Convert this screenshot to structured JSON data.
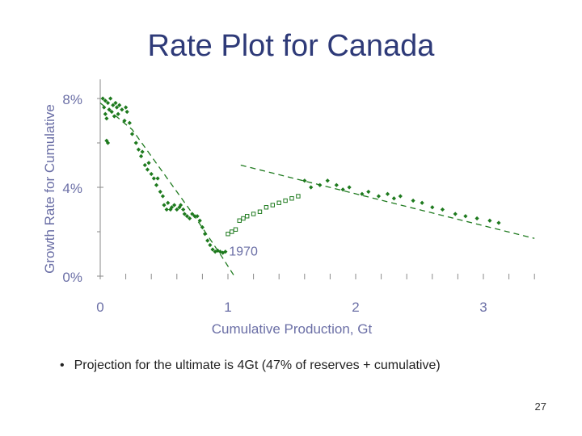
{
  "slide": {
    "title": "Rate Plot for Canada",
    "bullet": "Projection for the ultimate is 4Gt (47% of reserves + cumulative)",
    "page_number": "27"
  },
  "colors": {
    "title": "#2e3a78",
    "axis_label": "#6b6fa6",
    "data": "#1e7a1e",
    "axis": "#8a8a8a"
  },
  "chart_data": {
    "type": "scatter",
    "title": "",
    "xlabel": "Cumulative Production, Gt",
    "ylabel": "Growth Rate for Cumulative",
    "xlim": [
      0,
      3.5
    ],
    "ylim": [
      0,
      8.5
    ],
    "x_ticks": [
      0,
      1,
      2,
      3
    ],
    "y_ticks": [
      {
        "value": 0,
        "label": "0%"
      },
      {
        "value": 4,
        "label": "4%"
      },
      {
        "value": 8,
        "label": "8%"
      }
    ],
    "annotation": {
      "text": "1970",
      "x": 0.97,
      "y": 1.15
    },
    "series": [
      {
        "marker": "diamond-filled",
        "points": [
          [
            0.02,
            8.0
          ],
          [
            0.03,
            7.6
          ],
          [
            0.04,
            7.3
          ],
          [
            0.04,
            7.9
          ],
          [
            0.05,
            7.1
          ],
          [
            0.06,
            7.8
          ],
          [
            0.07,
            7.5
          ],
          [
            0.08,
            8.0
          ],
          [
            0.09,
            7.4
          ],
          [
            0.1,
            7.7
          ],
          [
            0.11,
            7.2
          ],
          [
            0.12,
            7.8
          ],
          [
            0.13,
            7.6
          ],
          [
            0.14,
            7.3
          ],
          [
            0.15,
            7.7
          ],
          [
            0.17,
            7.5
          ],
          [
            0.19,
            7.0
          ],
          [
            0.2,
            7.6
          ],
          [
            0.21,
            7.4
          ],
          [
            0.23,
            6.9
          ],
          [
            0.25,
            6.4
          ],
          [
            0.06,
            6.0
          ],
          [
            0.05,
            6.1
          ],
          [
            0.28,
            6.0
          ],
          [
            0.3,
            5.7
          ],
          [
            0.32,
            5.4
          ],
          [
            0.33,
            5.6
          ],
          [
            0.35,
            5.0
          ],
          [
            0.37,
            4.8
          ],
          [
            0.38,
            5.1
          ],
          [
            0.4,
            4.6
          ],
          [
            0.42,
            4.4
          ],
          [
            0.44,
            4.1
          ],
          [
            0.45,
            4.4
          ],
          [
            0.47,
            3.8
          ],
          [
            0.49,
            3.6
          ],
          [
            0.5,
            3.2
          ],
          [
            0.52,
            3.0
          ],
          [
            0.53,
            3.3
          ],
          [
            0.55,
            3.0
          ],
          [
            0.56,
            3.1
          ],
          [
            0.58,
            3.2
          ],
          [
            0.6,
            3.0
          ],
          [
            0.62,
            3.1
          ],
          [
            0.63,
            3.2
          ],
          [
            0.65,
            3.0
          ],
          [
            0.66,
            2.8
          ],
          [
            0.68,
            2.7
          ],
          [
            0.7,
            2.6
          ],
          [
            0.72,
            2.8
          ],
          [
            0.74,
            2.7
          ],
          [
            0.76,
            2.7
          ],
          [
            0.78,
            2.5
          ],
          [
            0.8,
            2.2
          ],
          [
            0.82,
            1.9
          ],
          [
            0.84,
            1.6
          ],
          [
            0.86,
            1.4
          ],
          [
            0.88,
            1.2
          ],
          [
            0.9,
            1.1
          ],
          [
            0.92,
            1.15
          ],
          [
            0.94,
            1.1
          ],
          [
            0.96,
            1.05
          ],
          [
            0.98,
            1.1
          ],
          [
            1.6,
            4.3
          ],
          [
            1.65,
            4.0
          ],
          [
            1.72,
            4.1
          ],
          [
            1.78,
            4.3
          ],
          [
            1.85,
            4.1
          ],
          [
            1.9,
            3.9
          ],
          [
            1.95,
            4.0
          ],
          [
            2.05,
            3.7
          ],
          [
            2.1,
            3.8
          ],
          [
            2.18,
            3.6
          ],
          [
            2.25,
            3.7
          ],
          [
            2.3,
            3.5
          ],
          [
            2.35,
            3.6
          ],
          [
            2.45,
            3.4
          ],
          [
            2.52,
            3.3
          ],
          [
            2.6,
            3.1
          ],
          [
            2.68,
            3.0
          ],
          [
            2.78,
            2.8
          ],
          [
            2.86,
            2.7
          ],
          [
            2.95,
            2.6
          ],
          [
            3.05,
            2.5
          ],
          [
            3.12,
            2.4
          ]
        ]
      },
      {
        "marker": "square-open",
        "points": [
          [
            1.0,
            1.9
          ],
          [
            1.03,
            2.0
          ],
          [
            1.06,
            2.1
          ],
          [
            1.09,
            2.5
          ],
          [
            1.12,
            2.6
          ],
          [
            1.15,
            2.7
          ],
          [
            1.2,
            2.8
          ],
          [
            1.25,
            2.9
          ],
          [
            1.3,
            3.1
          ],
          [
            1.35,
            3.2
          ],
          [
            1.4,
            3.3
          ],
          [
            1.45,
            3.4
          ],
          [
            1.5,
            3.5
          ],
          [
            1.55,
            3.6
          ]
        ]
      }
    ],
    "trend_lines": [
      {
        "style": "dashed",
        "points": [
          [
            0.0,
            7.8
          ],
          [
            0.25,
            6.6
          ],
          [
            0.5,
            4.6
          ],
          [
            0.75,
            2.6
          ],
          [
            0.95,
            0.9
          ],
          [
            1.05,
            0.0
          ]
        ]
      },
      {
        "style": "dashed",
        "points": [
          [
            1.1,
            5.0
          ],
          [
            3.4,
            1.7
          ]
        ]
      }
    ]
  }
}
